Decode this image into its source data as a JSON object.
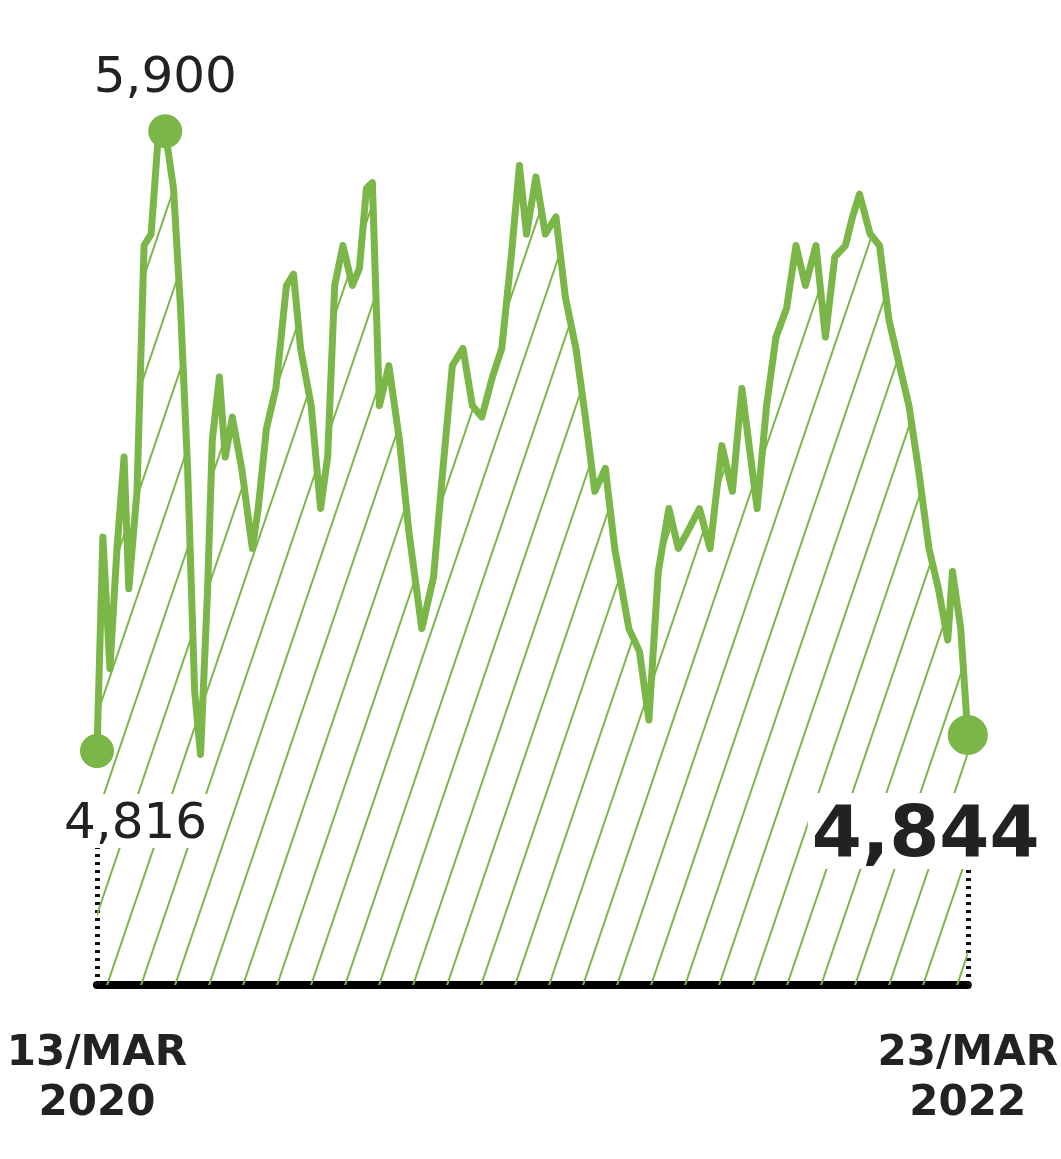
{
  "chart_data": {
    "type": "area",
    "xticks": [
      {
        "value": "2020-03-13",
        "label": "13/MAR\n2020"
      },
      {
        "value": "2022-03-23",
        "label": "23/MAR\n2022"
      }
    ],
    "xlim": [
      "2020-03-13",
      "2022-03-23"
    ],
    "tick_labels": "x",
    "grid": false,
    "line_style": "solid",
    "x": [
      "2020-03-13",
      "2020-03-18",
      "2020-03-24",
      "2020-03-30",
      "2020-04-05",
      "2020-04-09",
      "2020-04-16",
      "2020-04-22",
      "2020-04-28",
      "2020-05-04",
      "2020-05-10",
      "2020-05-17",
      "2020-05-23",
      "2020-05-29",
      "2020-06-04",
      "2020-06-09",
      "2020-06-15",
      "2020-06-19",
      "2020-06-25",
      "2020-06-30",
      "2020-07-06",
      "2020-07-14",
      "2020-07-23",
      "2020-07-28",
      "2020-08-04",
      "2020-08-12",
      "2020-08-21",
      "2020-08-27",
      "2020-09-02",
      "2020-09-11",
      "2020-09-19",
      "2020-09-25",
      "2020-10-01",
      "2020-10-08",
      "2020-10-16",
      "2020-10-22",
      "2020-10-28",
      "2020-11-02",
      "2020-11-08",
      "2020-11-16",
      "2020-11-25",
      "2020-12-03",
      "2020-12-14",
      "2020-12-24",
      "2021-01-01",
      "2021-01-09",
      "2021-01-18",
      "2021-01-26",
      "2021-02-03",
      "2021-02-12",
      "2021-02-20",
      "2021-02-28",
      "2021-03-07",
      "2021-03-13",
      "2021-03-21",
      "2021-03-29",
      "2021-04-07",
      "2021-04-15",
      "2021-04-24",
      "2021-05-02",
      "2021-05-10",
      "2021-05-19",
      "2021-05-27",
      "2021-06-08",
      "2021-06-17",
      "2021-06-25",
      "2021-07-03",
      "2021-07-12",
      "2021-07-20",
      "2021-07-28",
      "2021-08-07",
      "2021-08-16",
      "2021-08-26",
      "2021-09-04",
      "2021-09-12",
      "2021-09-25",
      "2021-10-03",
      "2021-10-11",
      "2021-10-20",
      "2021-10-28",
      "2021-11-05",
      "2021-11-14",
      "2021-11-22",
      "2021-11-30",
      "2021-12-09",
      "2021-12-15",
      "2021-12-21",
      "2021-12-30",
      "2022-01-07",
      "2022-01-15",
      "2022-01-24",
      "2022-02-01",
      "2022-02-09",
      "2022-02-18",
      "2022-02-26",
      "2022-03-06",
      "2022-03-10",
      "2022-03-17",
      "2022-03-23"
    ],
    "series": [
      {
        "color": "#7ab648",
        "values": [
          4816,
          5190,
          4960,
          5170,
          5330,
          5100,
          5270,
          5700,
          5720,
          5890,
          5900,
          5800,
          5590,
          5310,
          4920,
          4810,
          5100,
          5360,
          5470,
          5330,
          5400,
          5310,
          5170,
          5240,
          5380,
          5450,
          5630,
          5650,
          5520,
          5420,
          5240,
          5330,
          5630,
          5700,
          5630,
          5660,
          5800,
          5810,
          5420,
          5490,
          5360,
          5200,
          5030,
          5120,
          5310,
          5490,
          5520,
          5420,
          5400,
          5470,
          5520,
          5680,
          5840,
          5720,
          5820,
          5720,
          5750,
          5610,
          5520,
          5400,
          5270,
          5310,
          5170,
          5030,
          4990,
          4870,
          5130,
          5240,
          5170,
          5200,
          5240,
          5170,
          5350,
          5270,
          5450,
          5240,
          5420,
          5540,
          5590,
          5700,
          5630,
          5700,
          5540,
          5680,
          5700,
          5750,
          5790,
          5720,
          5700,
          5570,
          5490,
          5420,
          5310,
          5170,
          5100,
          5010,
          5130,
          5030,
          4844
        ],
        "value_labels": [
          "4,816",
          null,
          null,
          null,
          null,
          null,
          null,
          null,
          null,
          null,
          "5,900",
          null,
          null,
          null,
          null,
          null,
          null,
          null,
          null,
          null,
          null,
          null,
          null,
          null,
          null,
          null,
          null,
          null,
          null,
          null,
          null,
          null,
          null,
          null,
          null,
          null,
          null,
          null,
          null,
          null,
          null,
          null,
          null,
          null,
          null,
          null,
          null,
          null,
          null,
          null,
          null,
          null,
          null,
          null,
          null,
          null,
          null,
          null,
          null,
          null,
          null,
          null,
          null,
          null,
          null,
          null,
          null,
          null,
          null,
          null,
          null,
          null,
          null,
          null,
          null,
          null,
          null,
          null,
          null,
          null,
          null,
          null,
          null,
          null,
          null,
          null,
          null,
          null,
          null,
          null,
          null,
          null,
          null,
          null,
          null,
          null,
          null,
          null,
          "4,844"
        ]
      }
    ]
  }
}
